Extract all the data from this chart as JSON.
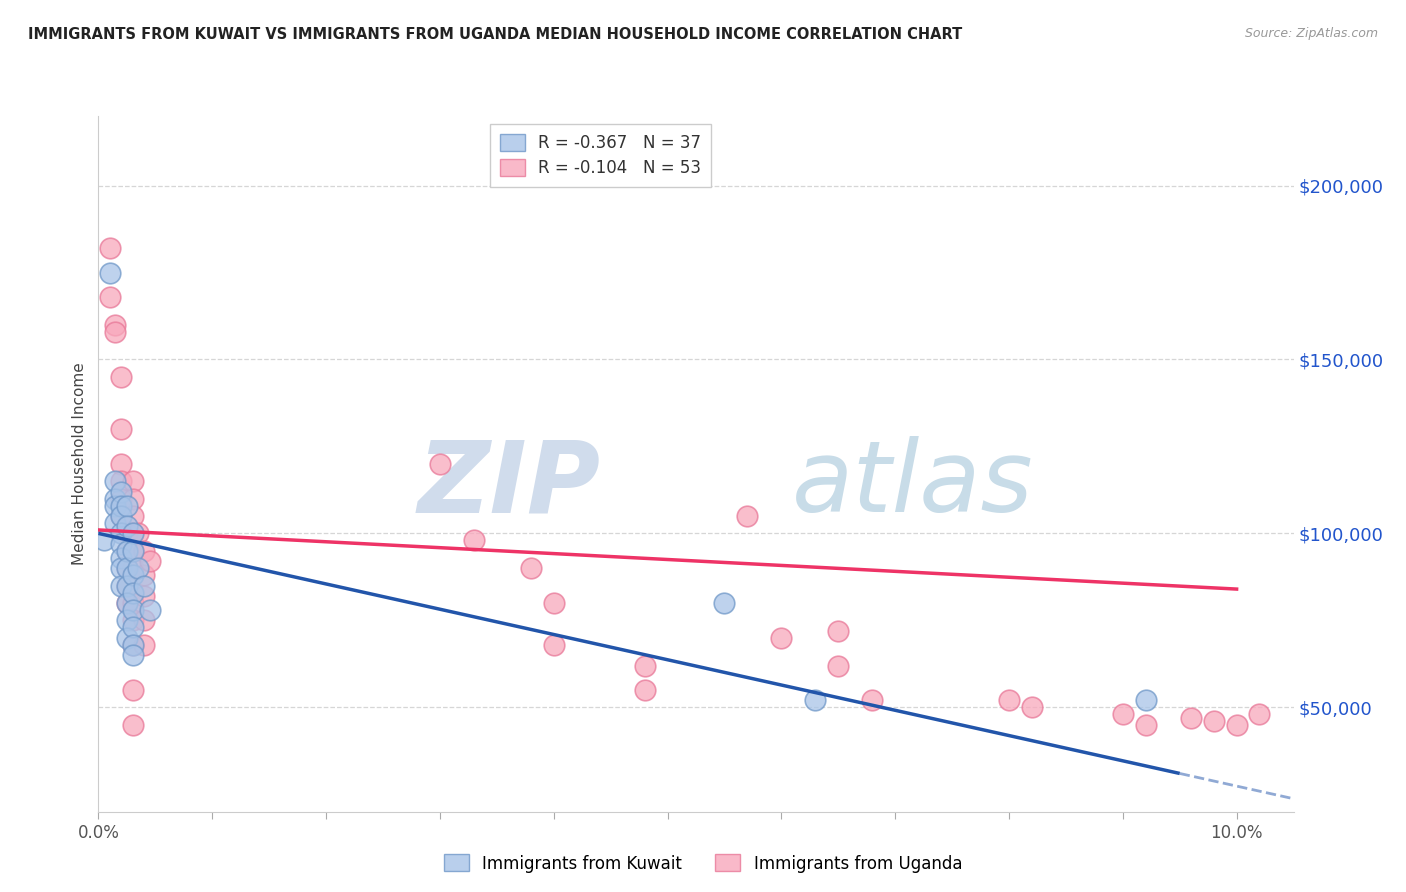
{
  "title": "IMMIGRANTS FROM KUWAIT VS IMMIGRANTS FROM UGANDA MEDIAN HOUSEHOLD INCOME CORRELATION CHART",
  "source": "Source: ZipAtlas.com",
  "ylabel": "Median Household Income",
  "xlim": [
    0.0,
    0.105
  ],
  "ylim": [
    20000,
    220000
  ],
  "plot_xlim": [
    0.0,
    0.105
  ],
  "ytick_values": [
    50000,
    100000,
    150000,
    200000
  ],
  "kuwait_color": "#a8c4e8",
  "kuwait_edge_color": "#7098c8",
  "uganda_color": "#f8a8bc",
  "uganda_edge_color": "#e87898",
  "kuwait_line_color": "#2255aa",
  "uganda_line_color": "#ee3366",
  "kuwait_line_solid_end": 0.095,
  "kuwait_line_dash_start": 0.095,
  "kuwait_line_dash_end": 0.107,
  "watermark_zip_color": "#d8e4f0",
  "watermark_atlas_color": "#d8e8f0",
  "grid_color": "#cccccc",
  "kuwait_points": [
    [
      0.0005,
      98000
    ],
    [
      0.001,
      175000
    ],
    [
      0.0015,
      115000
    ],
    [
      0.0015,
      110000
    ],
    [
      0.0015,
      108000
    ],
    [
      0.0015,
      103000
    ],
    [
      0.002,
      112000
    ],
    [
      0.002,
      108000
    ],
    [
      0.002,
      105000
    ],
    [
      0.002,
      100000
    ],
    [
      0.002,
      97000
    ],
    [
      0.002,
      93000
    ],
    [
      0.002,
      90000
    ],
    [
      0.002,
      85000
    ],
    [
      0.0025,
      108000
    ],
    [
      0.0025,
      102000
    ],
    [
      0.0025,
      95000
    ],
    [
      0.0025,
      90000
    ],
    [
      0.0025,
      85000
    ],
    [
      0.0025,
      80000
    ],
    [
      0.0025,
      75000
    ],
    [
      0.0025,
      70000
    ],
    [
      0.003,
      100000
    ],
    [
      0.003,
      95000
    ],
    [
      0.003,
      88000
    ],
    [
      0.003,
      83000
    ],
    [
      0.003,
      78000
    ],
    [
      0.003,
      73000
    ],
    [
      0.003,
      68000
    ],
    [
      0.003,
      65000
    ],
    [
      0.0035,
      90000
    ],
    [
      0.004,
      85000
    ],
    [
      0.0045,
      78000
    ],
    [
      0.055,
      80000
    ],
    [
      0.063,
      52000
    ],
    [
      0.092,
      52000
    ]
  ],
  "kuwait_line_x": [
    0.0,
    0.095
  ],
  "kuwait_line_y": [
    100000,
    31000
  ],
  "uganda_line_x": [
    0.0,
    0.1
  ],
  "uganda_line_y": [
    101000,
    84000
  ],
  "uganda_points": [
    [
      0.001,
      182000
    ],
    [
      0.001,
      168000
    ],
    [
      0.0015,
      160000
    ],
    [
      0.0015,
      158000
    ],
    [
      0.002,
      145000
    ],
    [
      0.002,
      130000
    ],
    [
      0.002,
      120000
    ],
    [
      0.002,
      115000
    ],
    [
      0.002,
      110000
    ],
    [
      0.002,
      105000
    ],
    [
      0.0025,
      100000
    ],
    [
      0.0025,
      95000
    ],
    [
      0.0025,
      90000
    ],
    [
      0.0025,
      85000
    ],
    [
      0.0025,
      80000
    ],
    [
      0.003,
      115000
    ],
    [
      0.003,
      110000
    ],
    [
      0.003,
      105000
    ],
    [
      0.003,
      100000
    ],
    [
      0.003,
      95000
    ],
    [
      0.003,
      90000
    ],
    [
      0.003,
      80000
    ],
    [
      0.003,
      75000
    ],
    [
      0.003,
      68000
    ],
    [
      0.003,
      55000
    ],
    [
      0.003,
      45000
    ],
    [
      0.0035,
      100000
    ],
    [
      0.004,
      95000
    ],
    [
      0.004,
      88000
    ],
    [
      0.004,
      82000
    ],
    [
      0.004,
      75000
    ],
    [
      0.004,
      68000
    ],
    [
      0.0045,
      92000
    ],
    [
      0.03,
      120000
    ],
    [
      0.033,
      98000
    ],
    [
      0.038,
      90000
    ],
    [
      0.04,
      80000
    ],
    [
      0.04,
      68000
    ],
    [
      0.048,
      62000
    ],
    [
      0.048,
      55000
    ],
    [
      0.057,
      105000
    ],
    [
      0.06,
      70000
    ],
    [
      0.065,
      72000
    ],
    [
      0.065,
      62000
    ],
    [
      0.068,
      52000
    ],
    [
      0.08,
      52000
    ],
    [
      0.082,
      50000
    ],
    [
      0.09,
      48000
    ],
    [
      0.092,
      45000
    ],
    [
      0.096,
      47000
    ],
    [
      0.098,
      46000
    ],
    [
      0.1,
      45000
    ],
    [
      0.102,
      48000
    ]
  ]
}
